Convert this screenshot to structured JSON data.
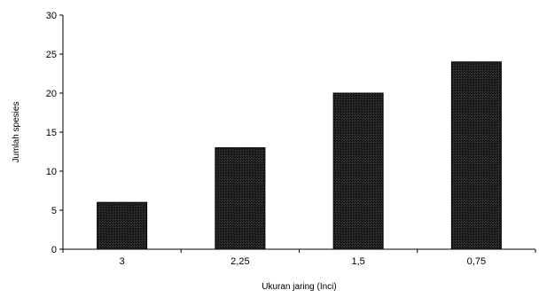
{
  "chart_data": {
    "type": "bar",
    "title": "",
    "xlabel": "Ukuran jaring (Inci)",
    "ylabel": "Jumlah spesies",
    "categories": [
      "3",
      "2,25",
      "1,5",
      "0,75"
    ],
    "values": [
      6,
      13,
      20,
      24
    ],
    "ylim": [
      0,
      30
    ],
    "yticks": [
      "0",
      "5",
      "10",
      "15",
      "20",
      "25",
      "30"
    ],
    "grid": false,
    "legend": "none",
    "bar_color": "#1a1a1a"
  }
}
